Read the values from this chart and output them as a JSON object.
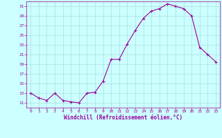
{
  "x": [
    0,
    1,
    2,
    3,
    4,
    5,
    6,
    7,
    8,
    9,
    10,
    11,
    12,
    13,
    14,
    15,
    16,
    17,
    18,
    19,
    20,
    21,
    22,
    23
  ],
  "y": [
    13.0,
    12.0,
    11.5,
    13.0,
    11.5,
    11.2,
    11.0,
    13.0,
    13.2,
    15.5,
    20.0,
    20.0,
    23.2,
    26.0,
    28.5,
    30.0,
    30.5,
    31.5,
    31.0,
    30.5,
    29.0,
    22.5,
    21.0,
    19.5
  ],
  "line_color": "#990099",
  "marker": "+",
  "marker_color": "#990099",
  "bg_color": "#ccffff",
  "grid_color": "#aadddd",
  "xlabel": "Windchill (Refroidissement éolien,°C)",
  "xlabel_color": "#990099",
  "tick_color": "#990099",
  "ylim": [
    10.0,
    32.0
  ],
  "yticks": [
    11,
    13,
    15,
    17,
    19,
    21,
    23,
    25,
    27,
    29,
    31
  ],
  "xticks": [
    0,
    1,
    2,
    3,
    4,
    5,
    6,
    7,
    8,
    9,
    10,
    11,
    12,
    13,
    14,
    15,
    16,
    17,
    18,
    19,
    20,
    21,
    22,
    23
  ],
  "figsize": [
    3.2,
    2.0
  ],
  "dpi": 100
}
